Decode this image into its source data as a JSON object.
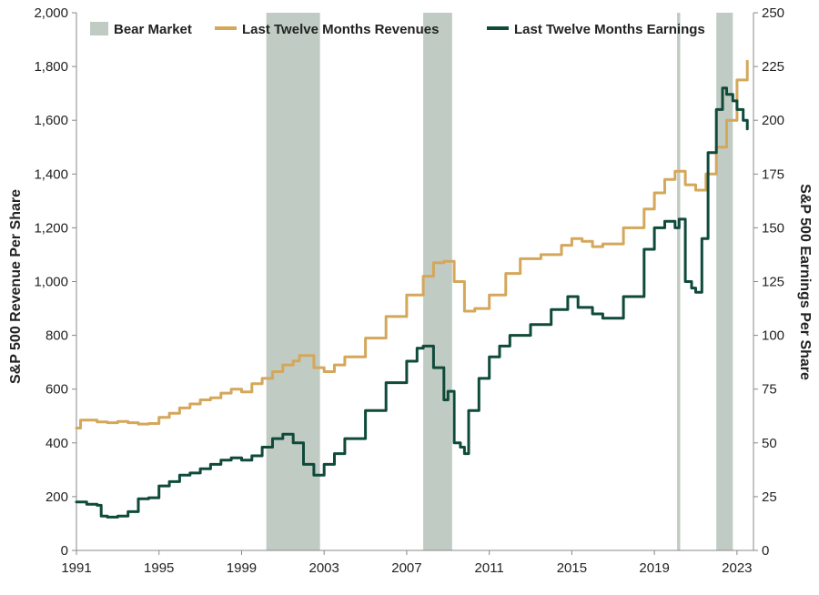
{
  "chart_data": {
    "type": "line",
    "title": "",
    "xlabel": "",
    "ylabel": "S&P 500 Revenue Per Share",
    "ylabel_right": "S&P 500 Earnings Per Share",
    "xlim": [
      1991,
      2023.8
    ],
    "ylim": [
      0,
      2000
    ],
    "ylim_right": [
      0,
      250
    ],
    "x_ticks": [
      "1991",
      "1995",
      "1999",
      "2003",
      "2007",
      "2011",
      "2015",
      "2019",
      "2023"
    ],
    "y_ticks": [
      "0",
      "200",
      "400",
      "600",
      "800",
      "1,000",
      "1,200",
      "1,400",
      "1,600",
      "1,800",
      "2,000"
    ],
    "y_ticks_right": [
      "0",
      "25",
      "50",
      "75",
      "100",
      "125",
      "150",
      "175",
      "200",
      "225",
      "250"
    ],
    "grid": false,
    "legend_position": "top",
    "colors": {
      "bear": "#c0cbc3",
      "revenue": "#d4a75b",
      "earnings": "#0f4a3a",
      "axis": "#888888",
      "text": "#222222"
    },
    "bear_markets": {
      "name": "Bear Market",
      "periods": [
        [
          2000.2,
          2002.8
        ],
        [
          2007.8,
          2009.2
        ],
        [
          2020.1,
          2020.25
        ],
        [
          2022.0,
          2022.8
        ]
      ]
    },
    "series": [
      {
        "name": "Last Twelve Months Revenues",
        "axis": "left",
        "x": [
          1991.0,
          1991.2,
          1992.0,
          1992.5,
          1993.0,
          1993.5,
          1994.0,
          1994.5,
          1995.0,
          1995.5,
          1996.0,
          1996.5,
          1997.0,
          1997.5,
          1998.0,
          1998.5,
          1999.0,
          1999.5,
          2000.0,
          2000.5,
          2001.0,
          2001.5,
          2001.8,
          2002.5,
          2003.0,
          2003.5,
          2004.0,
          2005.0,
          2006.0,
          2007.0,
          2007.8,
          2008.3,
          2008.8,
          2009.3,
          2009.8,
          2010.3,
          2011.0,
          2011.8,
          2012.5,
          2013.5,
          2014.5,
          2015.0,
          2015.5,
          2016.0,
          2016.5,
          2017.5,
          2018.5,
          2019.0,
          2019.5,
          2020.0,
          2020.5,
          2021.0,
          2021.5,
          2022.0,
          2022.5,
          2023.0,
          2023.5
        ],
        "values": [
          455,
          485,
          478,
          475,
          480,
          475,
          470,
          472,
          495,
          510,
          530,
          545,
          560,
          568,
          585,
          600,
          590,
          620,
          640,
          665,
          690,
          705,
          725,
          680,
          665,
          690,
          720,
          790,
          870,
          950,
          1020,
          1070,
          1075,
          1000,
          890,
          900,
          950,
          1030,
          1085,
          1100,
          1135,
          1160,
          1150,
          1130,
          1140,
          1200,
          1270,
          1330,
          1380,
          1410,
          1360,
          1340,
          1400,
          1500,
          1600,
          1750,
          1820
        ]
      },
      {
        "name": "Last Twelve Months Earnings",
        "axis": "right",
        "x": [
          1991.0,
          1991.5,
          1992.0,
          1992.2,
          1992.5,
          1993.0,
          1993.5,
          1994.0,
          1994.5,
          1995.0,
          1995.5,
          1996.0,
          1996.5,
          1997.0,
          1997.5,
          1998.0,
          1998.5,
          1999.0,
          1999.5,
          2000.0,
          2000.5,
          2001.0,
          2001.5,
          2002.0,
          2002.5,
          2003.0,
          2003.5,
          2004.0,
          2005.0,
          2006.0,
          2007.0,
          2007.5,
          2007.8,
          2008.3,
          2008.8,
          2009.0,
          2009.3,
          2009.6,
          2009.8,
          2010.0,
          2010.5,
          2011.0,
          2011.5,
          2012.0,
          2013.0,
          2014.0,
          2014.8,
          2015.3,
          2016.0,
          2016.5,
          2017.5,
          2018.5,
          2019.0,
          2019.5,
          2020.0,
          2020.2,
          2020.5,
          2020.8,
          2021.0,
          2021.3,
          2021.6,
          2022.0,
          2022.3,
          2022.5,
          2022.8,
          2023.0,
          2023.3,
          2023.5
        ],
        "values": [
          22.5,
          21.5,
          21,
          16,
          15.5,
          16,
          18,
          24,
          24.5,
          30,
          32,
          35,
          36,
          38,
          40,
          42,
          43,
          42,
          44,
          48,
          52,
          54,
          50,
          40,
          35,
          40,
          45,
          52,
          65,
          78,
          88,
          94,
          95,
          85,
          70,
          74,
          50,
          48,
          45,
          65,
          80,
          90,
          95,
          100,
          105,
          112,
          118,
          113,
          110,
          108,
          118,
          140,
          150,
          153,
          150,
          154,
          125,
          122,
          120,
          145,
          185,
          205,
          215,
          212,
          209,
          205,
          200,
          196
        ]
      }
    ]
  }
}
